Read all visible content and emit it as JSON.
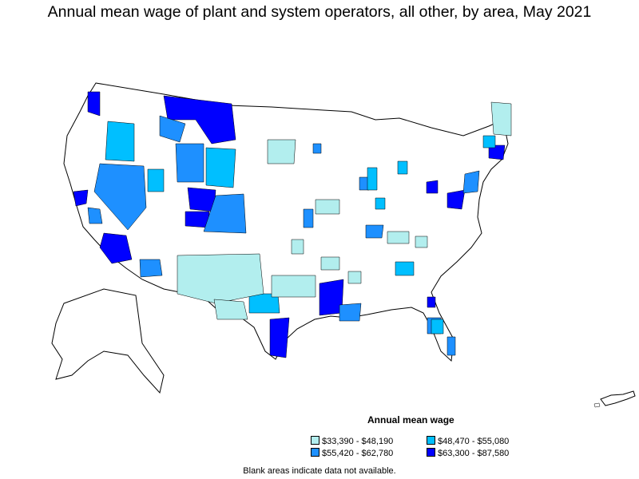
{
  "title": "Annual mean wage of plant and system operators, all other, by area, May 2021",
  "legend": {
    "title": "Annual mean wage",
    "items": [
      {
        "label": "$33,390 - $48,190",
        "color": "#b2eeee"
      },
      {
        "label": "$48,470 - $55,080",
        "color": "#00bfff"
      },
      {
        "label": "$55,420 - $62,780",
        "color": "#1e90ff"
      },
      {
        "label": "$63,300 - $87,580",
        "color": "#0000ff"
      }
    ]
  },
  "footnote": "Blank areas indicate data not available.",
  "colors": {
    "no_data": "#ffffff",
    "border": "#000000"
  }
}
